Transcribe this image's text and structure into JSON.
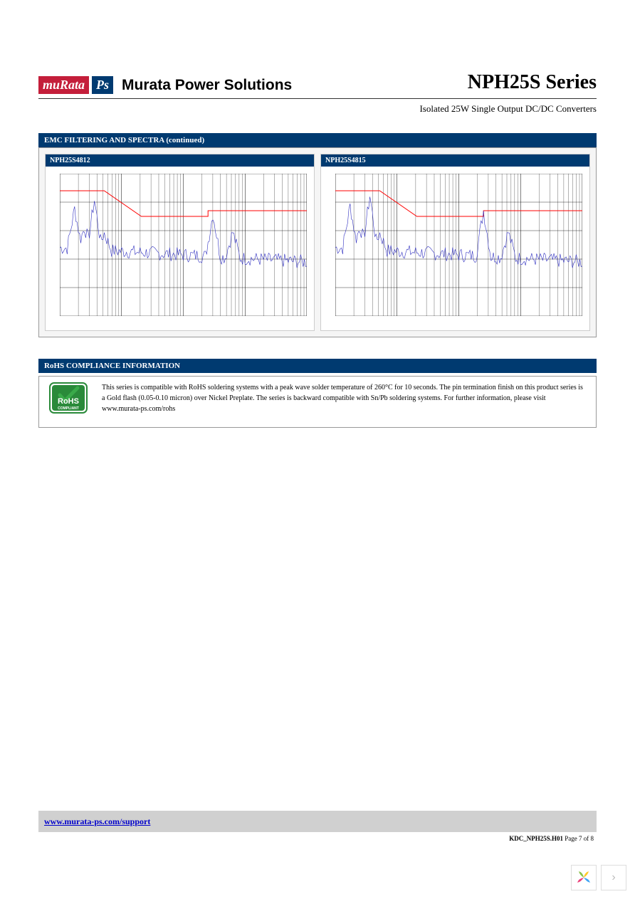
{
  "header": {
    "logo_murata": "muRata",
    "logo_ps": "Ps",
    "brand": "Murata Power Solutions",
    "series_title": "NPH25S Series",
    "series_sub": "Isolated 25W Single Output DC/DC Converters"
  },
  "section_emc": {
    "title": "EMC FILTERING AND SPECTRA (continued)",
    "panel_bg": "#f5f5f5",
    "bar_bg": "#003a70"
  },
  "charts": [
    {
      "title": "NPH25S4812",
      "type": "emc-spectrum",
      "x_decades": [
        0.15,
        1,
        10,
        100,
        1000
      ],
      "y_range": [
        0,
        100
      ],
      "y_ticks": [
        0,
        20,
        40,
        60,
        80,
        100
      ],
      "grid_color": "#000000",
      "background_color": "#ffffff",
      "limit_line_color": "#ff0000",
      "limit_points": [
        [
          0,
          88
        ],
        [
          18,
          88
        ],
        [
          33,
          70
        ],
        [
          60,
          70
        ],
        [
          60,
          74
        ],
        [
          100,
          74
        ]
      ],
      "signal_color": "#3030c0",
      "signal_baseline": 48,
      "signal_noise_amp": 10,
      "signal_peaks": [
        [
          6,
          28
        ],
        [
          10,
          15
        ],
        [
          14,
          35
        ],
        [
          18,
          12
        ],
        [
          62,
          30
        ],
        [
          70,
          18
        ]
      ]
    },
    {
      "title": "NPH25S4815",
      "type": "emc-spectrum",
      "x_decades": [
        0.15,
        1,
        10,
        100,
        1000
      ],
      "y_range": [
        0,
        100
      ],
      "y_ticks": [
        0,
        20,
        40,
        60,
        80,
        100
      ],
      "grid_color": "#000000",
      "background_color": "#ffffff",
      "limit_line_color": "#ff0000",
      "limit_points": [
        [
          0,
          88
        ],
        [
          18,
          88
        ],
        [
          33,
          70
        ],
        [
          60,
          70
        ],
        [
          60,
          74
        ],
        [
          100,
          74
        ]
      ],
      "signal_color": "#3030c0",
      "signal_baseline": 48,
      "signal_noise_amp": 10,
      "signal_peaks": [
        [
          6,
          30
        ],
        [
          10,
          15
        ],
        [
          14,
          38
        ],
        [
          18,
          12
        ],
        [
          60,
          32
        ],
        [
          70,
          18
        ]
      ]
    }
  ],
  "rohs": {
    "section_title": "RoHS COMPLIANCE INFORMATION",
    "badge_bg": "#2a8a3a",
    "badge_border": "#006a2a",
    "badge_text_top": "RoHS",
    "badge_text_bot": "COMPLIANT",
    "body": "This series is compatible with RoHS soldering systems with a peak wave solder temperature of 260°C for 10 seconds. The pin termination finish on this product series is a Gold flash (0.05-0.10 micron) over Nickel Preplate. The series is backward compatible with Sn/Pb soldering systems. For further information, please visit www.murata-ps.com/rohs"
  },
  "footer": {
    "link": "www.murata-ps.com/support",
    "doc_id": "KDC_NPH25S.H01",
    "page": "Page 7 of 8",
    "bar_bg": "#d0d0d0"
  },
  "nav": {
    "next_glyph": "›"
  }
}
